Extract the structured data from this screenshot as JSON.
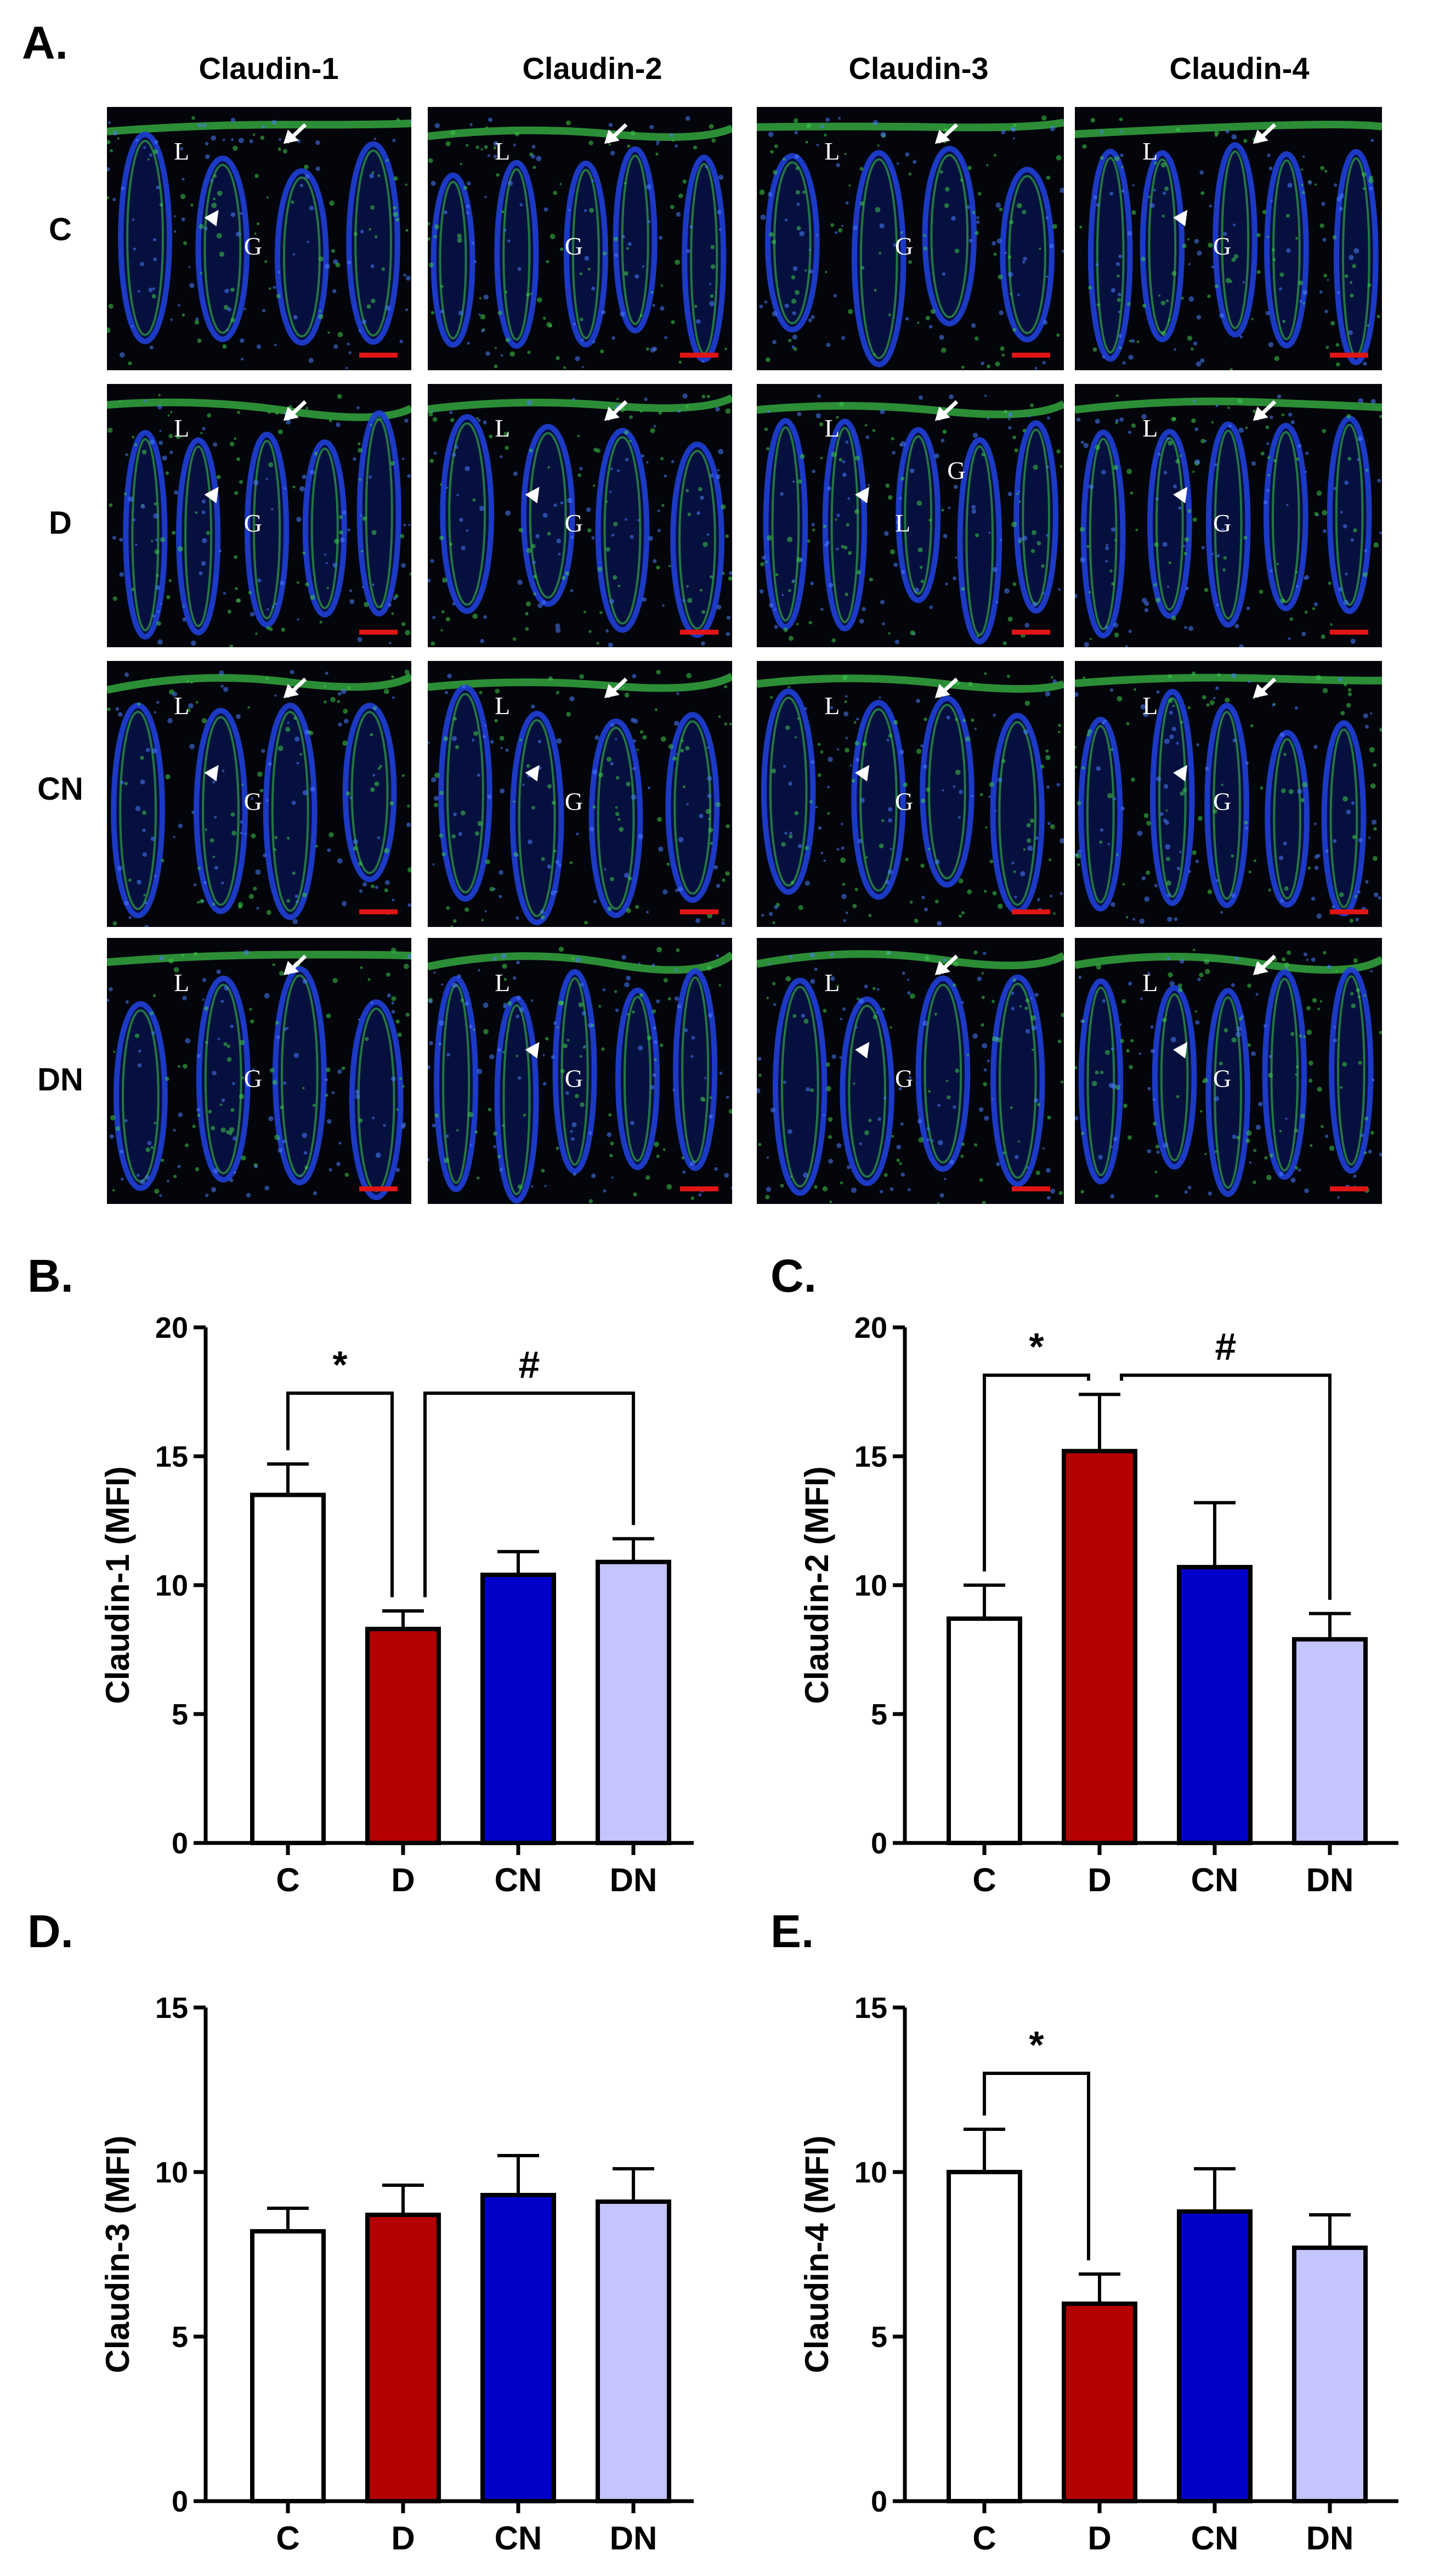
{
  "panel_a": {
    "label": "A.",
    "columns": [
      "Claudin-1",
      "Claudin-2",
      "Claudin-3",
      "Claudin-4"
    ],
    "rows": [
      "C",
      "D",
      "CN",
      "DN"
    ],
    "tiles": [
      [
        {
          "letters": [
            "L",
            "G"
          ],
          "arrow": true,
          "arrowhead": true
        },
        {
          "letters": [
            "L",
            "G"
          ],
          "arrow": true,
          "arrowhead": false
        },
        {
          "letters": [
            "L",
            "G"
          ],
          "arrow": true,
          "arrowhead": false
        },
        {
          "letters": [
            "L",
            "G"
          ],
          "arrow": true,
          "arrowhead": true
        }
      ],
      [
        {
          "letters": [
            "L",
            "G"
          ],
          "arrow": true,
          "arrowhead": true
        },
        {
          "letters": [
            "L",
            "G"
          ],
          "arrow": true,
          "arrowhead": true
        },
        {
          "letters": [
            "L",
            "L",
            "G"
          ],
          "arrow": true,
          "arrowhead": true
        },
        {
          "letters": [
            "L",
            "G"
          ],
          "arrow": true,
          "arrowhead": true
        }
      ],
      [
        {
          "letters": [
            "L",
            "G"
          ],
          "arrow": true,
          "arrowhead": true
        },
        {
          "letters": [
            "L",
            "G"
          ],
          "arrow": true,
          "arrowhead": true
        },
        {
          "letters": [
            "L",
            "G"
          ],
          "arrow": true,
          "arrowhead": true
        },
        {
          "letters": [
            "L",
            "G"
          ],
          "arrow": true,
          "arrowhead": true
        }
      ],
      [
        {
          "letters": [
            "L",
            "G"
          ],
          "arrow": true,
          "arrowhead": false
        },
        {
          "letters": [
            "L",
            "G"
          ],
          "arrow": false,
          "arrowhead": true
        },
        {
          "letters": [
            "L",
            "G"
          ],
          "arrow": true,
          "arrowhead": true
        },
        {
          "letters": [
            "L",
            "G"
          ],
          "arrow": true,
          "arrowhead": true
        }
      ]
    ],
    "colors": {
      "background": "#03050a",
      "nuclei": "#1f3fd6",
      "claudin": "#3ec84a",
      "scale_bar": "#e01515"
    }
  },
  "chart_data": [
    {
      "panel": "B.",
      "type": "bar",
      "categories": [
        "C",
        "D",
        "CN",
        "DN"
      ],
      "values": [
        13.5,
        8.3,
        10.4,
        10.9
      ],
      "errors": [
        1.2,
        0.7,
        0.9,
        0.9
      ],
      "ylabel": "Claudin-1 (MFI)",
      "ylim": [
        0,
        20
      ],
      "yticks": [
        0,
        5,
        10,
        15,
        20
      ],
      "colors": [
        "#ffffff",
        "#b40000",
        "#0000c8",
        "#c4c4ff"
      ],
      "brackets": [
        {
          "from": 0,
          "to": 1,
          "label": "*"
        },
        {
          "from": 1,
          "to": 3,
          "label": "#"
        }
      ]
    },
    {
      "panel": "C.",
      "type": "bar",
      "categories": [
        "C",
        "D",
        "CN",
        "DN"
      ],
      "values": [
        8.7,
        15.2,
        10.7,
        7.9
      ],
      "errors": [
        1.3,
        2.2,
        2.5,
        1.0
      ],
      "ylabel": "Claudin-2 (MFI)",
      "ylim": [
        0,
        20
      ],
      "yticks": [
        0,
        5,
        10,
        15,
        20
      ],
      "colors": [
        "#ffffff",
        "#b40000",
        "#0000c8",
        "#c4c4ff"
      ],
      "brackets": [
        {
          "from": 0,
          "to": 1,
          "label": "*"
        },
        {
          "from": 1,
          "to": 3,
          "label": "#"
        }
      ]
    },
    {
      "panel": "D.",
      "type": "bar",
      "categories": [
        "C",
        "D",
        "CN",
        "DN"
      ],
      "values": [
        8.2,
        8.7,
        9.3,
        9.1
      ],
      "errors": [
        0.7,
        0.9,
        1.2,
        1.0
      ],
      "ylabel": "Claudin-3 (MFI)",
      "ylim": [
        0,
        15
      ],
      "yticks": [
        0,
        5,
        10,
        15
      ],
      "colors": [
        "#ffffff",
        "#b40000",
        "#0000c8",
        "#c4c4ff"
      ],
      "brackets": []
    },
    {
      "panel": "E.",
      "type": "bar",
      "categories": [
        "C",
        "D",
        "CN",
        "DN"
      ],
      "values": [
        10.0,
        6.0,
        8.8,
        7.7
      ],
      "errors": [
        1.3,
        0.9,
        1.3,
        1.0
      ],
      "ylabel": "Claudin-4 (MFI)",
      "ylim": [
        0,
        15
      ],
      "yticks": [
        0,
        5,
        10,
        15
      ],
      "colors": [
        "#ffffff",
        "#b40000",
        "#0000c8",
        "#c4c4ff"
      ],
      "brackets": [
        {
          "from": 0,
          "to": 1,
          "label": "*"
        }
      ]
    }
  ]
}
